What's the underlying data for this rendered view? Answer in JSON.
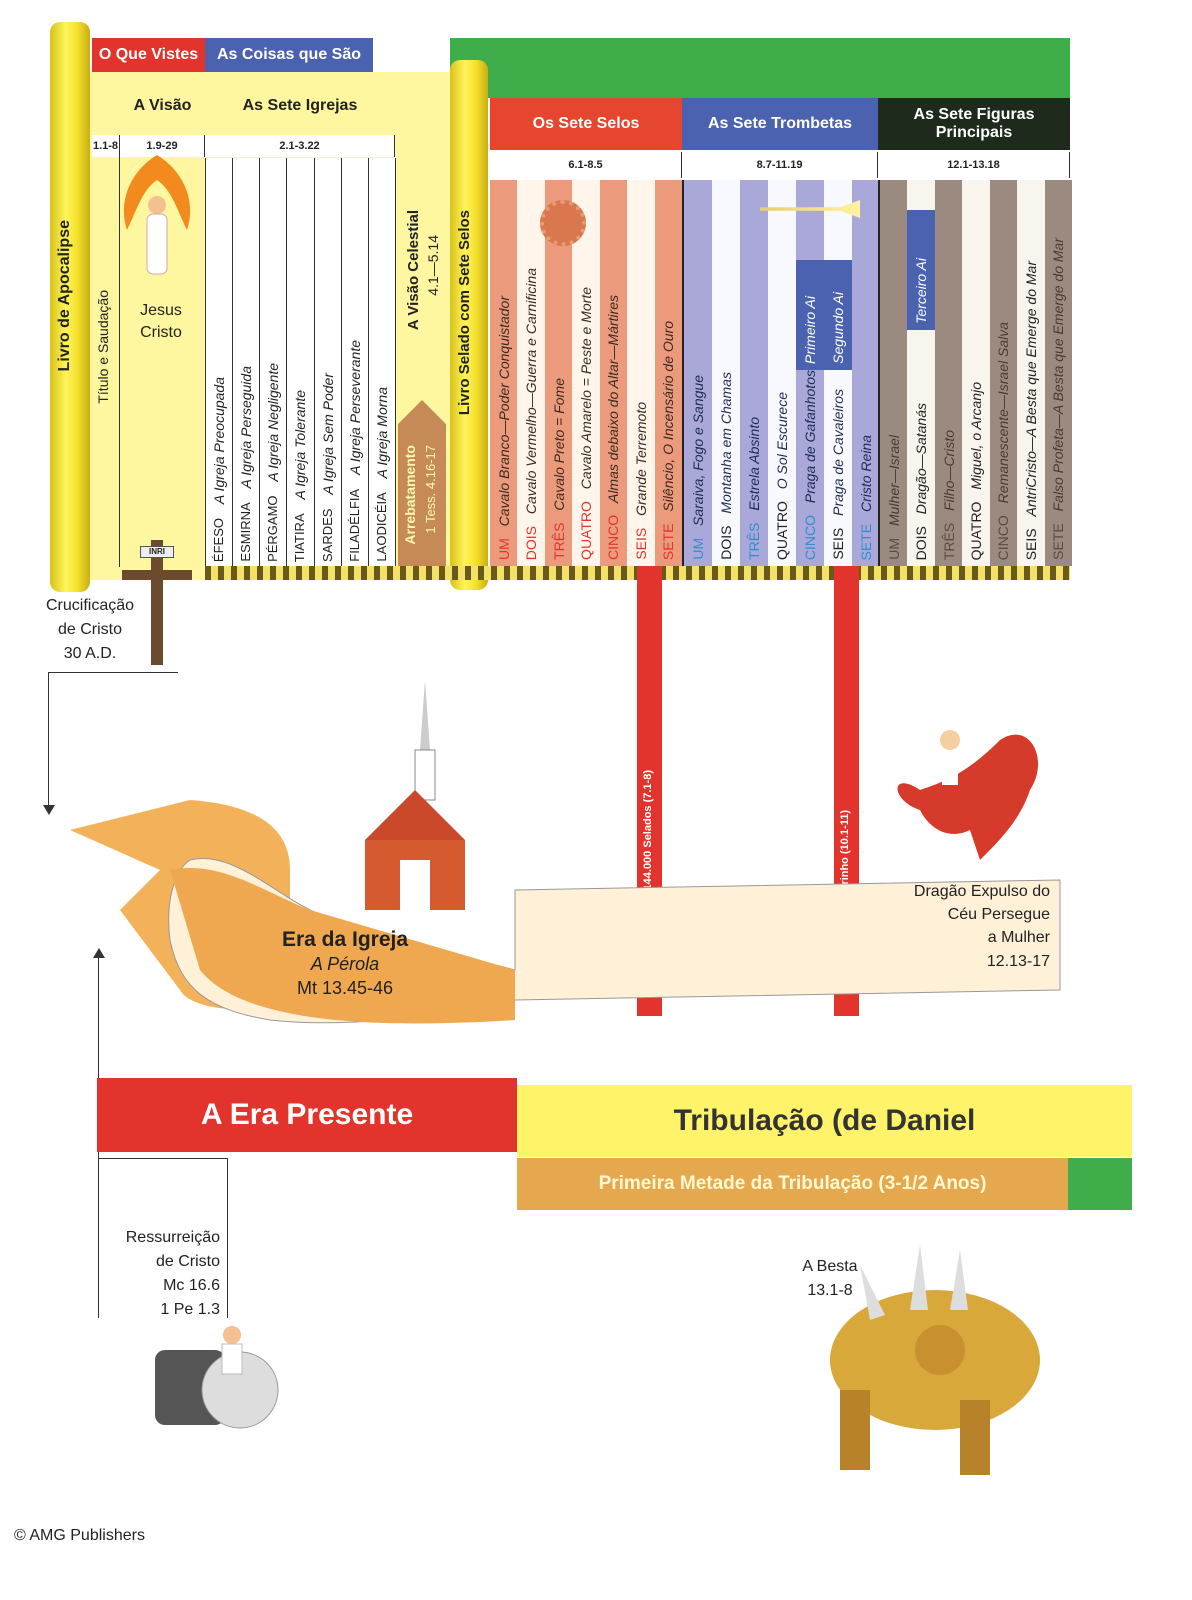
{
  "headers": {
    "o_que_vistes": "O Que Vistes",
    "coisas_que_sao": "As Coisas que São",
    "a_visao": "A Visão",
    "sete_igrejas": "As Sete Igrejas",
    "sete_selos": "Os Sete Selos",
    "sete_trombetas": "As Sete Trombetas",
    "sete_figuras": "As Sete Figuras Principais"
  },
  "refs": {
    "titulo": "1.1-8",
    "visao": "1.9-29",
    "igrejas": "2.1-3.22",
    "selos": "6.1-8.5",
    "trombetas": "8.7-11.19",
    "figuras": "12.1-13.18"
  },
  "scroll1": {
    "title": "Livro de Apocalipse"
  },
  "scroll2": {
    "title": "Livro Selado com Sete Selos"
  },
  "titulo_col": "Título e Saudação",
  "jesus": "Jesus Cristo",
  "visao_celestial": {
    "title": "A Visão Celestial",
    "ref": "4.1—5.14"
  },
  "arrebatamento": {
    "title": "Arrebatamento",
    "ref": "1 Tess. 4.16-17"
  },
  "churches": [
    {
      "name": "ÉFESO",
      "desc": "A Igreja Preocupada"
    },
    {
      "name": "ESMIRNA",
      "desc": "A Igreja Perseguida"
    },
    {
      "name": "PÉRGAMO",
      "desc": "A Igreja Negligente"
    },
    {
      "name": "TIATIRA",
      "desc": "A Igreja Tolerante"
    },
    {
      "name": "SARDES",
      "desc": "A Igreja Sem Poder"
    },
    {
      "name": "FILADÉLFIA",
      "desc": "A Igreja Perseverante"
    },
    {
      "name": "LAODICÉIA",
      "desc": "A Igreja Morna"
    }
  ],
  "seals": [
    {
      "num": "UM",
      "text": "Cavalo Branco—Poder Conquistador"
    },
    {
      "num": "DOIS",
      "text": "Cavalo Vermelho—Guerra e Carnificina"
    },
    {
      "num": "TRÊS",
      "text": "Cavalo Preto = Fome"
    },
    {
      "num": "QUATRO",
      "text": "Cavalo Amarelo = Peste e Morte"
    },
    {
      "num": "CINCO",
      "text": "Almas debaixo do Altar—Mártires"
    },
    {
      "num": "SEIS",
      "text": "Grande Terremoto"
    },
    {
      "num": "SETE",
      "text": "Silêncio, O Incensário de Ouro"
    }
  ],
  "trumpets": [
    {
      "num": "UM",
      "text": "Saraiva, Fogo e Sangue"
    },
    {
      "num": "DOIS",
      "text": "Montanha em Chamas"
    },
    {
      "num": "TRÊS",
      "text": "Estrela Absinto"
    },
    {
      "num": "QUATRO",
      "text": "O Sol Escurece"
    },
    {
      "num": "CINCO",
      "text": "Praga de Gafanhotos",
      "woe": "Primeiro Ai"
    },
    {
      "num": "SEIS",
      "text": "Praga de Cavaleiros",
      "woe": "Segundo Ai"
    },
    {
      "num": "SETE",
      "text": "Cristo Reina"
    }
  ],
  "figures": [
    {
      "num": "UM",
      "text": "Mulher—Israel"
    },
    {
      "num": "DOIS",
      "text": "Dragão—Satanás",
      "woe": "Terceiro Ai"
    },
    {
      "num": "TRÊS",
      "text": "Filho—Cristo"
    },
    {
      "num": "QUATRO",
      "text": "Miguel, o Arcanjo"
    },
    {
      "num": "CINCO",
      "text": "Remanescente—Israel Salva"
    },
    {
      "num": "SEIS",
      "text": "AntriCristo—A Besta que Emerge do Mar"
    },
    {
      "num": "SETE",
      "text": "Falso Profeta—A Besta que Emerge do Mar"
    }
  ],
  "intervals": [
    "INTERVALO 144.000 Selados (7.1-8)",
    "INTERVALO Livrinho (10.1-11)"
  ],
  "crucificacao": [
    "Crucificação",
    "de Cristo",
    "30 A.D."
  ],
  "cross_sign": "INRI",
  "era_igreja": {
    "title": "Era da Igreja",
    "subtitle": "A Pérola",
    "ref": "Mt 13.45-46"
  },
  "dragao": [
    "Dragão Expulso do",
    "Céu Persegue",
    "a Mulher",
    "12.13-17"
  ],
  "bars": {
    "era_presente": "A Era Presente",
    "tribulacao": "Tribulação (de Daniel",
    "primeira_metade": "Primeira Metade da Tribulação (3-1/2 Anos)"
  },
  "ressurreicao": [
    "Ressurreição",
    "de Cristo",
    "Mc 16.6",
    "1 Pe 1.3"
  ],
  "besta": [
    "A Besta",
    "13.1-8"
  ],
  "copyright": "© AMG Publishers",
  "colors": {
    "red": "#e2342c",
    "blue": "#4b62b0",
    "green": "#3fae4a",
    "yellow": "#fff36a",
    "dark": "#1d2a1c",
    "salmon": "#eb9a7c",
    "lavender": "#a9a8d8",
    "gray": "#9a8a80"
  }
}
